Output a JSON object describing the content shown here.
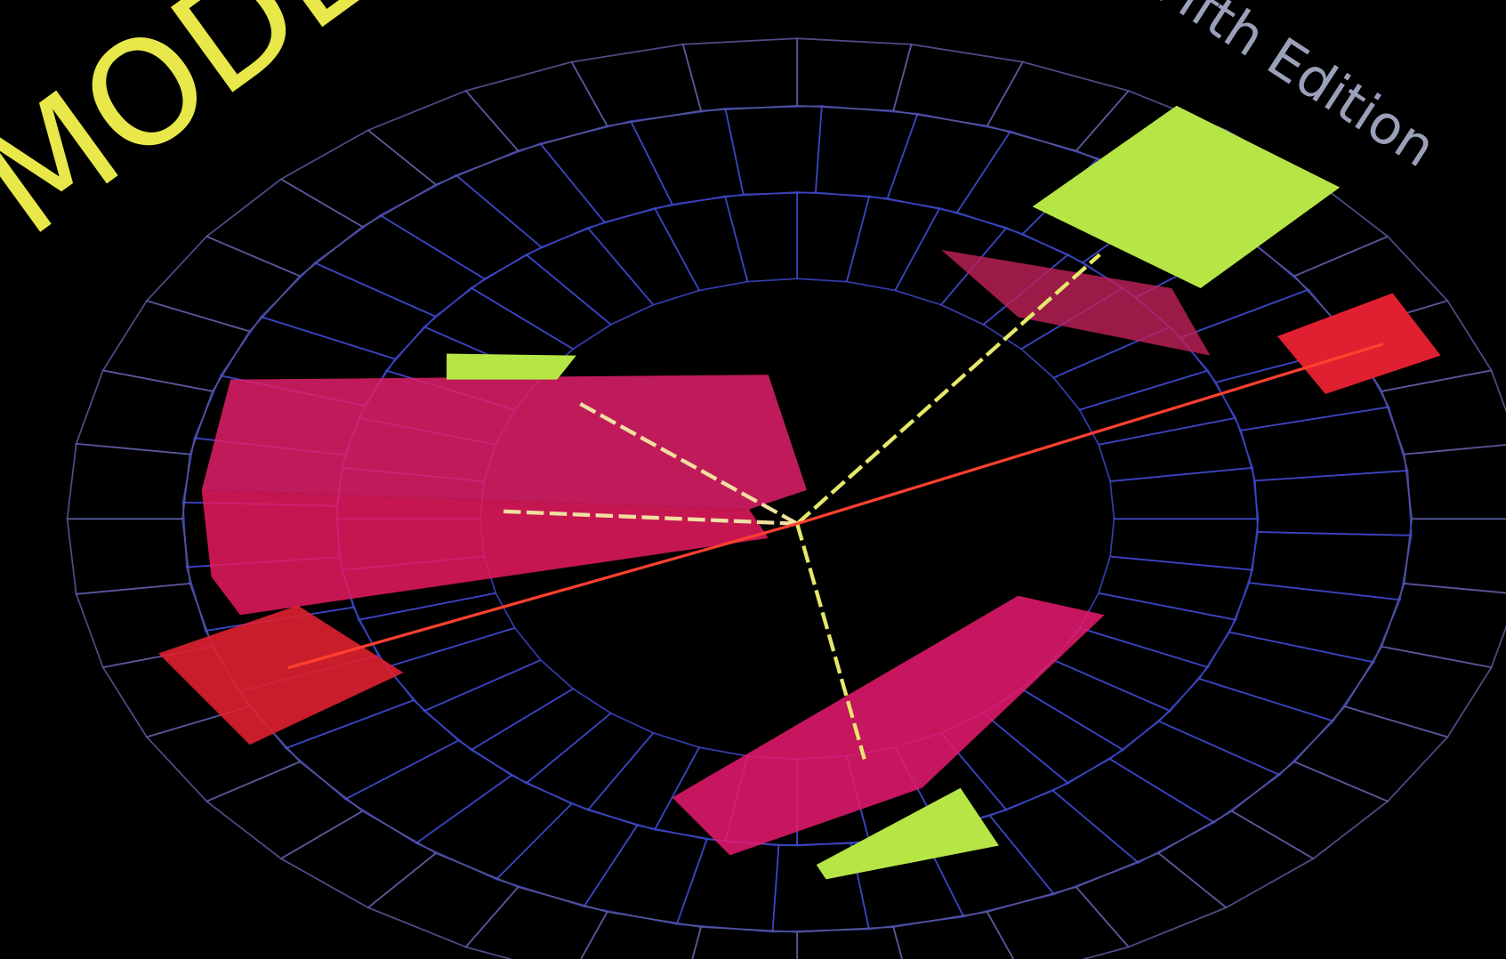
{
  "cover": {
    "title": "MODERN",
    "edition": "Fifth Edition"
  }
}
